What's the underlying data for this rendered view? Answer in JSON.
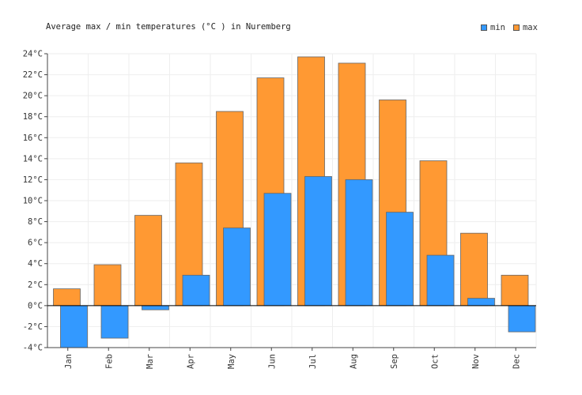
{
  "chart_data": {
    "type": "bar",
    "title": "Average max / min temperatures (°C ) in Nuremberg",
    "categories": [
      "Jan",
      "Feb",
      "Mar",
      "Apr",
      "May",
      "Jun",
      "Jul",
      "Aug",
      "Sep",
      "Oct",
      "Nov",
      "Dec"
    ],
    "series": [
      {
        "name": "max",
        "color": "#ff9933",
        "values": [
          1.6,
          3.9,
          8.6,
          13.6,
          18.5,
          21.7,
          23.7,
          23.1,
          19.6,
          13.8,
          6.9,
          2.9
        ]
      },
      {
        "name": "min",
        "color": "#3399ff",
        "values": [
          -4.0,
          -3.1,
          -0.4,
          2.9,
          7.4,
          10.7,
          12.3,
          12.0,
          8.9,
          4.8,
          0.7,
          -2.5
        ]
      }
    ],
    "legend": [
      {
        "label": "min",
        "color": "#3399ff"
      },
      {
        "label": "max",
        "color": "#ff9933"
      }
    ],
    "ylim": [
      -4,
      24
    ],
    "yticks": [
      -4,
      -2,
      0,
      2,
      4,
      6,
      8,
      10,
      12,
      14,
      16,
      18,
      20,
      22,
      24
    ],
    "ytick_suffix": "°C",
    "grid": true,
    "legend_position": "top-right"
  }
}
